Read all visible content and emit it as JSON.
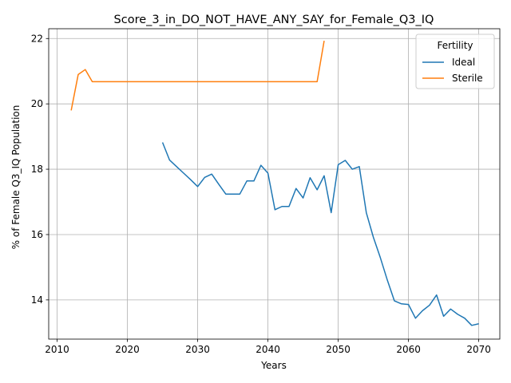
{
  "chart_data": {
    "type": "line",
    "title": "Score_3_in_DO_NOT_HAVE_ANY_SAY_for_Female_Q3_IQ",
    "xlabel": "Years",
    "ylabel": "% of Female Q3_IQ Population",
    "xlim": [
      2008.8,
      2073.0
    ],
    "ylim": [
      12.8,
      22.3
    ],
    "xticks": [
      2010,
      2020,
      2030,
      2040,
      2050,
      2060,
      2070
    ],
    "yticks": [
      14,
      16,
      18,
      20,
      22
    ],
    "xtick_labels": [
      "2010",
      "2020",
      "2030",
      "2040",
      "2050",
      "2060",
      "2070"
    ],
    "ytick_labels": [
      "14",
      "16",
      "18",
      "20",
      "22"
    ],
    "grid": true,
    "legend": {
      "title": "Fertility",
      "position": "top-right"
    },
    "series": [
      {
        "name": "Ideal",
        "color": "#1f77b4",
        "x": [
          2025,
          2026,
          2027,
          2028,
          2029,
          2030,
          2031,
          2032,
          2033,
          2034,
          2035,
          2036,
          2037,
          2038,
          2039,
          2040,
          2041,
          2042,
          2043,
          2044,
          2045,
          2046,
          2047,
          2048,
          2049,
          2050,
          2051,
          2052,
          2053,
          2054,
          2055,
          2056,
          2057,
          2058,
          2059,
          2060,
          2061,
          2062,
          2063,
          2064,
          2065,
          2066,
          2067,
          2068,
          2069,
          2070
        ],
        "y": [
          18.82,
          18.28,
          18.08,
          17.88,
          17.68,
          17.47,
          17.75,
          17.85,
          17.54,
          17.24,
          17.24,
          17.24,
          17.64,
          17.64,
          18.12,
          17.88,
          16.76,
          16.86,
          16.86,
          17.41,
          17.12,
          17.74,
          17.37,
          17.8,
          16.67,
          18.14,
          18.27,
          18.0,
          18.08,
          16.67,
          15.92,
          15.29,
          14.6,
          13.97,
          13.88,
          13.86,
          13.44,
          13.67,
          13.84,
          14.15,
          13.5,
          13.72,
          13.56,
          13.44,
          13.22,
          13.27
        ]
      },
      {
        "name": "Sterile",
        "color": "#ff7f0e",
        "x": [
          2012,
          2013,
          2014,
          2015,
          2016,
          2017,
          2018,
          2019,
          2020,
          2021,
          2022,
          2023,
          2024,
          2025,
          2026,
          2027,
          2028,
          2029,
          2030,
          2031,
          2032,
          2033,
          2034,
          2035,
          2036,
          2037,
          2038,
          2039,
          2040,
          2041,
          2042,
          2043,
          2044,
          2045,
          2046,
          2047,
          2048
        ],
        "y": [
          19.8,
          20.9,
          21.05,
          20.68,
          20.68,
          20.68,
          20.68,
          20.68,
          20.68,
          20.68,
          20.68,
          20.68,
          20.68,
          20.68,
          20.68,
          20.68,
          20.68,
          20.68,
          20.68,
          20.68,
          20.68,
          20.68,
          20.68,
          20.68,
          20.68,
          20.68,
          20.68,
          20.68,
          20.68,
          20.68,
          20.68,
          20.68,
          20.68,
          20.68,
          20.68,
          20.68,
          21.93
        ]
      }
    ]
  }
}
